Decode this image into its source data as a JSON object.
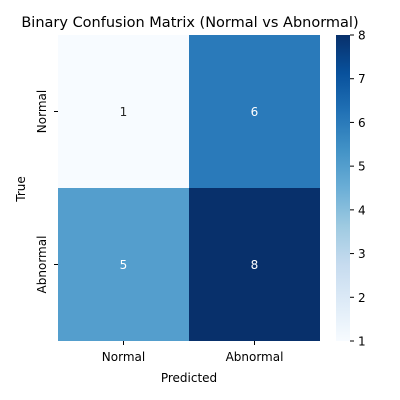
{
  "chart_data": {
    "type": "heatmap",
    "title": "Binary Confusion Matrix (Normal vs Abnormal)",
    "xlabel": "Predicted",
    "ylabel": "True",
    "x_categories": [
      "Normal",
      "Abnormal"
    ],
    "y_categories": [
      "Normal",
      "Abnormal"
    ],
    "values": [
      [
        1,
        6
      ],
      [
        5,
        8
      ]
    ],
    "colormap": "Blues",
    "colorbar": {
      "min": 1,
      "max": 8,
      "ticks": [
        "1",
        "2",
        "3",
        "4",
        "5",
        "6",
        "7",
        "8"
      ]
    },
    "colors": {
      "low": "#f7fbff",
      "high": "#08306b",
      "text_dark": "#262626",
      "text_light": "#ffffff"
    }
  }
}
